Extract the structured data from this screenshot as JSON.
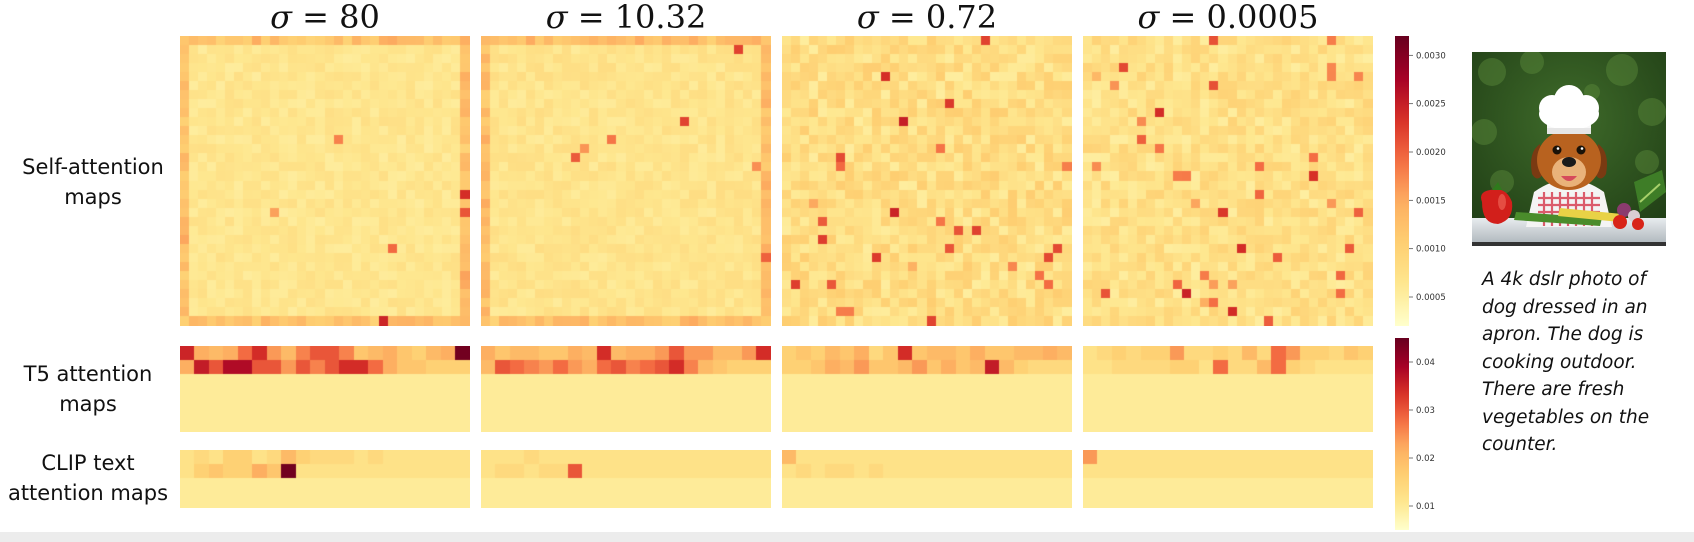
{
  "figure": {
    "column_titles": [
      {
        "symbol": "σ",
        "eq": " = ",
        "value": "80"
      },
      {
        "symbol": "σ",
        "eq": " = ",
        "value": "10.32"
      },
      {
        "symbol": "σ",
        "eq": " = ",
        "value": "0.72"
      },
      {
        "symbol": "σ",
        "eq": " = ",
        "value": "0.0005"
      }
    ],
    "row_labels": [
      [
        "Self-attention",
        "maps"
      ],
      [
        "T5 attention",
        "maps"
      ],
      [
        "CLIP text",
        "attention maps"
      ]
    ],
    "caption": "A 4k dslr photo of dog dressed in an apron. The dog is cooking outdoor. There are fresh vegetables on the counter.",
    "colormap": [
      "#ffffcc",
      "#fee78f",
      "#fecf72",
      "#fdae61",
      "#f46d43",
      "#d73027",
      "#a50026",
      "#67001f"
    ]
  },
  "chart_data": [
    {
      "type": "heatmap",
      "name": "self-attention",
      "colorbar_ticks": [
        "0.0005",
        "0.0010",
        "0.0015",
        "0.0020",
        "0.0025",
        "0.0030"
      ],
      "colorbar_tick_values": [
        0.0005,
        0.001,
        0.0015,
        0.002,
        0.0025,
        0.003
      ],
      "vmin": 0.0002,
      "vmax": 0.0032
    },
    {
      "type": "heatmap",
      "name": "text-attention",
      "colorbar_ticks": [
        "0.04",
        "0.03",
        "0.02",
        "0.01"
      ],
      "colorbar_tick_values": [
        0.04,
        0.03,
        0.02,
        0.01
      ],
      "vmin": 0.005,
      "vmax": 0.045,
      "t5_cells": [
        [
          [
            0.035,
            0.022,
            0.02,
            0.022,
            0.028,
            0.034,
            0.024,
            0.02,
            0.026,
            0.03,
            0.03,
            0.026,
            0.018,
            0.02,
            0.022,
            0.018,
            0.016,
            0.02,
            0.022,
            0.044
          ],
          [
            0.022,
            0.036,
            0.03,
            0.038,
            0.038,
            0.03,
            0.03,
            0.024,
            0.03,
            0.026,
            0.03,
            0.034,
            0.034,
            0.028,
            0.022,
            0.018,
            0.018,
            0.016,
            0.016,
            0.016
          ]
        ],
        [
          [
            0.022,
            0.018,
            0.02,
            0.02,
            0.018,
            0.018,
            0.022,
            0.02,
            0.034,
            0.02,
            0.022,
            0.022,
            0.024,
            0.03,
            0.024,
            0.024,
            0.02,
            0.02,
            0.024,
            0.034
          ],
          [
            0.02,
            0.03,
            0.028,
            0.026,
            0.024,
            0.028,
            0.024,
            0.022,
            0.028,
            0.03,
            0.026,
            0.028,
            0.03,
            0.034,
            0.026,
            0.02,
            0.018,
            0.016,
            0.016,
            0.016
          ]
        ],
        [
          [
            0.016,
            0.018,
            0.016,
            0.02,
            0.018,
            0.022,
            0.014,
            0.018,
            0.034,
            0.018,
            0.02,
            0.02,
            0.018,
            0.022,
            0.018,
            0.018,
            0.02,
            0.02,
            0.022,
            0.02
          ],
          [
            0.016,
            0.016,
            0.018,
            0.022,
            0.02,
            0.024,
            0.018,
            0.018,
            0.02,
            0.024,
            0.018,
            0.022,
            0.018,
            0.02,
            0.036,
            0.02,
            0.016,
            0.014,
            0.014,
            0.014
          ]
        ],
        [
          [
            0.012,
            0.014,
            0.016,
            0.014,
            0.016,
            0.016,
            0.024,
            0.014,
            0.014,
            0.016,
            0.014,
            0.02,
            0.014,
            0.028,
            0.024,
            0.016,
            0.016,
            0.014,
            0.018,
            0.016
          ],
          [
            0.012,
            0.012,
            0.014,
            0.014,
            0.014,
            0.014,
            0.016,
            0.016,
            0.012,
            0.028,
            0.014,
            0.014,
            0.02,
            0.028,
            0.016,
            0.014,
            0.012,
            0.012,
            0.012,
            0.012
          ]
        ]
      ],
      "clip_cells": [
        [
          [
            0.012,
            0.014,
            0.012,
            0.016,
            0.016,
            0.012,
            0.014,
            0.02,
            0.016,
            0.014,
            0.014,
            0.014,
            0.012,
            0.014,
            0.012,
            0.012,
            0.012,
            0.012,
            0.012,
            0.012
          ],
          [
            0.012,
            0.016,
            0.018,
            0.016,
            0.016,
            0.022,
            0.018,
            0.044,
            0.012,
            0.012,
            0.012,
            0.012,
            0.012,
            0.012,
            0.012,
            0.012,
            0.012,
            0.012,
            0.012,
            0.012
          ]
        ],
        [
          [
            0.012,
            0.012,
            0.012,
            0.014,
            0.012,
            0.012,
            0.012,
            0.012,
            0.012,
            0.012,
            0.012,
            0.012,
            0.012,
            0.012,
            0.012,
            0.012,
            0.012,
            0.012,
            0.012,
            0.012
          ],
          [
            0.012,
            0.014,
            0.014,
            0.012,
            0.014,
            0.014,
            0.03,
            0.012,
            0.012,
            0.012,
            0.012,
            0.012,
            0.012,
            0.012,
            0.012,
            0.012,
            0.012,
            0.012,
            0.012,
            0.012
          ]
        ],
        [
          [
            0.02,
            0.012,
            0.012,
            0.012,
            0.012,
            0.012,
            0.012,
            0.012,
            0.012,
            0.012,
            0.012,
            0.012,
            0.012,
            0.012,
            0.012,
            0.012,
            0.012,
            0.012,
            0.012,
            0.012
          ],
          [
            0.012,
            0.014,
            0.012,
            0.014,
            0.014,
            0.012,
            0.014,
            0.012,
            0.012,
            0.012,
            0.012,
            0.012,
            0.012,
            0.012,
            0.012,
            0.012,
            0.012,
            0.012,
            0.012,
            0.012
          ]
        ],
        [
          [
            0.024,
            0.012,
            0.012,
            0.012,
            0.012,
            0.012,
            0.012,
            0.012,
            0.012,
            0.012,
            0.012,
            0.012,
            0.012,
            0.012,
            0.012,
            0.012,
            0.012,
            0.012,
            0.012,
            0.012
          ],
          [
            0.012,
            0.012,
            0.012,
            0.012,
            0.012,
            0.012,
            0.012,
            0.012,
            0.012,
            0.012,
            0.012,
            0.012,
            0.012,
            0.012,
            0.012,
            0.012,
            0.012,
            0.012,
            0.012,
            0.012
          ]
        ]
      ]
    }
  ]
}
